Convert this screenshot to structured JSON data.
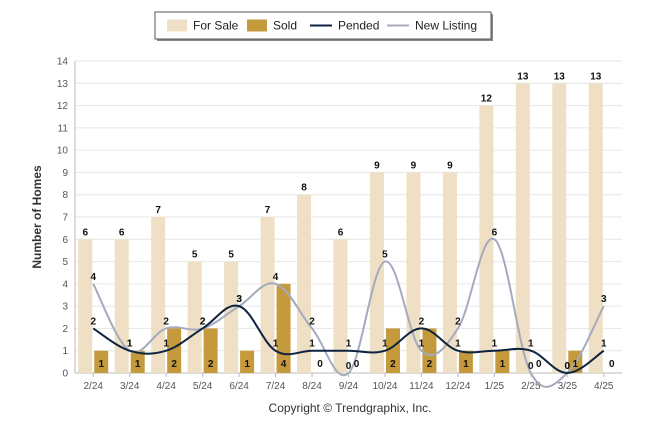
{
  "chart_data": {
    "type": "bar",
    "categories": [
      "2/24",
      "3/24",
      "4/24",
      "5/24",
      "6/24",
      "7/24",
      "8/24",
      "9/24",
      "10/24",
      "11/24",
      "12/24",
      "1/25",
      "2/25",
      "3/25",
      "4/25"
    ],
    "series": [
      {
        "name": "For Sale",
        "type": "bar",
        "color": "#efdfc4",
        "values": [
          6,
          6,
          7,
          5,
          5,
          7,
          8,
          6,
          9,
          9,
          9,
          12,
          13,
          13,
          13
        ]
      },
      {
        "name": "Sold",
        "type": "bar",
        "color": "#c49a3c",
        "values": [
          1,
          1,
          2,
          2,
          1,
          4,
          0,
          0,
          2,
          2,
          1,
          1,
          0,
          1,
          0
        ]
      },
      {
        "name": "Pended",
        "type": "line",
        "color": "#0d2340",
        "values": [
          2,
          1,
          1,
          2,
          3,
          1,
          1,
          1,
          1,
          2,
          1,
          1,
          1,
          0,
          1
        ]
      },
      {
        "name": "New Listing",
        "type": "line",
        "color": "#a4abbd",
        "values": [
          4,
          1,
          2,
          2,
          3,
          4,
          2,
          0,
          5,
          1,
          2,
          6,
          0,
          0,
          3
        ]
      }
    ],
    "ylabel": "Number of Homes",
    "ylim": [
      0,
      14
    ],
    "yticks": [
      0,
      1,
      2,
      3,
      4,
      5,
      6,
      7,
      8,
      9,
      10,
      11,
      12,
      13,
      14
    ],
    "grid": true,
    "legend_position": "top-center"
  },
  "footer": {
    "copyright": "Copyright © Trendgraphix, Inc."
  }
}
